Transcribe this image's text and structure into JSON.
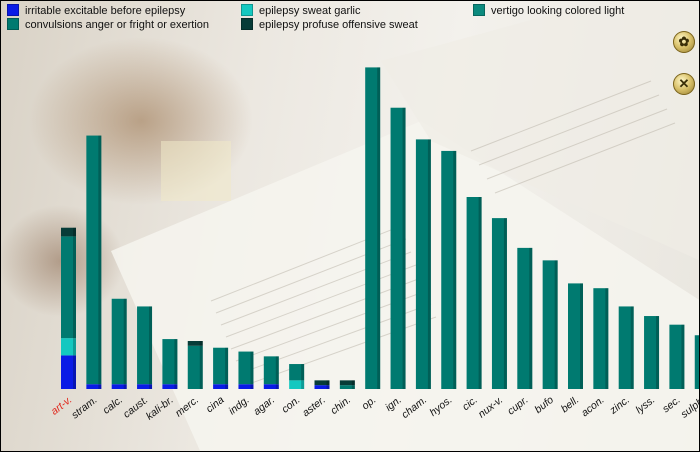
{
  "legend": [
    {
      "label": "irritable excitable before epilepsy",
      "color": "#0a1be6"
    },
    {
      "label": "convulsions anger or fright or exertion",
      "color": "#007a70"
    },
    {
      "label": "epilepsy sweat garlic",
      "color": "#14c8c0"
    },
    {
      "label": "epilepsy profuse offensive sweat",
      "color": "#073c38"
    },
    {
      "label": "vertigo looking colored light",
      "color": "#0b8a7e"
    }
  ],
  "icons": {
    "top": "medicine-icon",
    "bottom": "tools-icon"
  },
  "highlight_color": "#e0261b",
  "chart_data": {
    "type": "bar",
    "stacked": true,
    "categories": [
      "art-v.",
      "stram.",
      "calc.",
      "caust.",
      "kali-br.",
      "merc.",
      "cina",
      "indg.",
      "agar.",
      "con.",
      "aster.",
      "chin.",
      "op.",
      "ign.",
      "cham.",
      "hyos.",
      "cic.",
      "nux-v.",
      "cupr.",
      "bufo",
      "bell.",
      "acon.",
      "zinc.",
      "lyss.",
      "sec.",
      "sulph."
    ],
    "highlighted_category": "art-v.",
    "series": [
      {
        "name": "irritable excitable before epilepsy",
        "color": "#0a1be6",
        "values": [
          35,
          5,
          5,
          5,
          5,
          0,
          5,
          5,
          5,
          0,
          4,
          0,
          0,
          0,
          0,
          0,
          0,
          0,
          0,
          0,
          0,
          0,
          0,
          0,
          0,
          0
        ]
      },
      {
        "name": "epilepsy sweat garlic",
        "color": "#14c8c0",
        "values": [
          18,
          0,
          0,
          0,
          0,
          0,
          0,
          0,
          0,
          9,
          0,
          0,
          0,
          0,
          0,
          0,
          0,
          0,
          0,
          0,
          0,
          0,
          0,
          0,
          0,
          0
        ]
      },
      {
        "name": "convulsions anger or fright or exertion",
        "color": "#007a70",
        "values": [
          106,
          259,
          89,
          81,
          47,
          45,
          38,
          34,
          29,
          17,
          0,
          4,
          335,
          293,
          260,
          248,
          200,
          178,
          147,
          134,
          110,
          105,
          86,
          76,
          67,
          56
        ]
      },
      {
        "name": "epilepsy profuse offensive sweat",
        "color": "#073c38",
        "values": [
          9,
          0,
          0,
          0,
          0,
          5,
          0,
          0,
          0,
          0,
          5,
          5,
          0,
          0,
          0,
          0,
          0,
          0,
          0,
          0,
          0,
          0,
          0,
          0,
          0,
          0
        ]
      }
    ],
    "ylim": [
      0,
      350
    ],
    "grid": false,
    "legend_position": "top"
  }
}
